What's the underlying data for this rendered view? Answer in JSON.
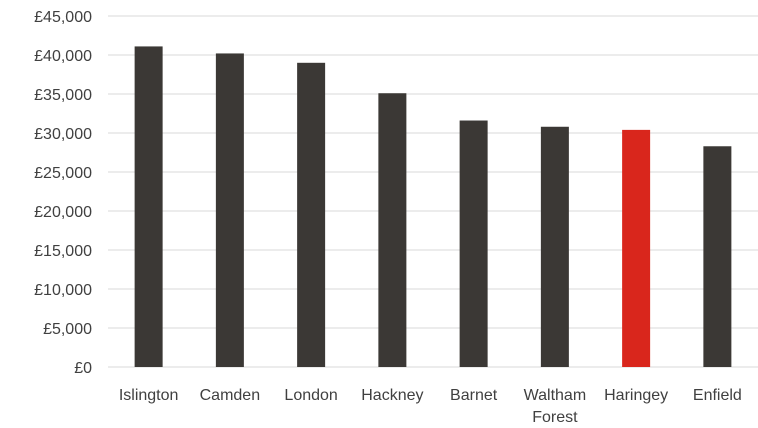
{
  "chart_data": {
    "type": "bar",
    "title": "",
    "xlabel": "",
    "ylabel": "",
    "ylim": [
      0,
      45000
    ],
    "grid": true,
    "legend": "none",
    "y_ticks": [
      "£0",
      "£5,000",
      "£10,000",
      "£15,000",
      "£20,000",
      "£25,000",
      "£30,000",
      "£35,000",
      "£40,000",
      "£45,000"
    ],
    "categories": [
      [
        "Islington"
      ],
      [
        "Camden"
      ],
      [
        "London"
      ],
      [
        "Hackney"
      ],
      [
        "Barnet"
      ],
      [
        "Waltham",
        "Forest"
      ],
      [
        "Haringey"
      ],
      [
        "Enfield"
      ]
    ],
    "values": [
      41100,
      40200,
      39000,
      35100,
      31600,
      30800,
      30400,
      28300
    ],
    "colors": [
      "#3b3835",
      "#3b3835",
      "#3b3835",
      "#3b3835",
      "#3b3835",
      "#3b3835",
      "#d9261c",
      "#3b3835"
    ]
  }
}
